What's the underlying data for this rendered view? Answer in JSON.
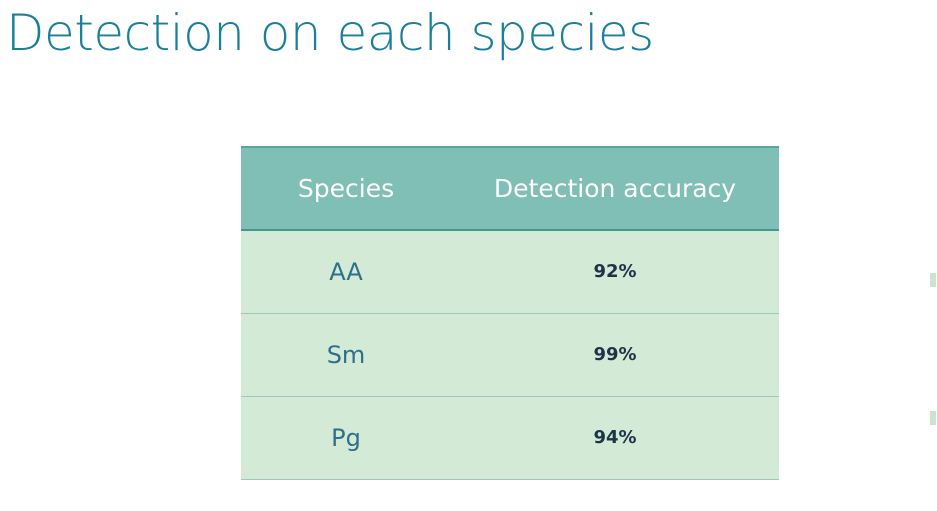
{
  "slide": {
    "title": "Detection on each species"
  },
  "table": {
    "headers": [
      "Species",
      "Detection accuracy"
    ],
    "rows": [
      {
        "species": "AA",
        "accuracy": "92%"
      },
      {
        "species": "Sm",
        "accuracy": "99%"
      },
      {
        "species": "Pg",
        "accuracy": "94%"
      }
    ]
  },
  "colors": {
    "title": "#1a7f9a",
    "header_background": "#80bfb6",
    "row_background": "#d3ead6",
    "species_text": "#2e6f8a",
    "accuracy_text": "#1c3447"
  }
}
